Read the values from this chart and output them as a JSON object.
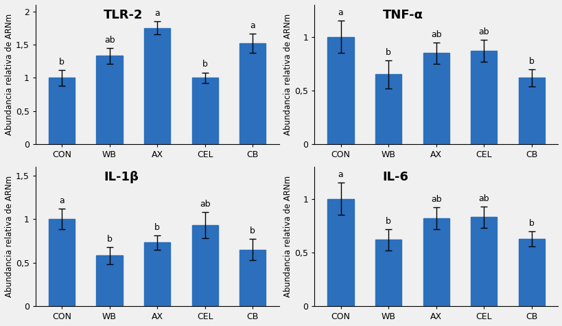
{
  "subplots": [
    {
      "title": "TLR-2",
      "categories": [
        "CON",
        "WB",
        "AX",
        "CEL",
        "CB"
      ],
      "values": [
        1.0,
        1.33,
        1.75,
        1.0,
        1.52
      ],
      "errors": [
        0.12,
        0.12,
        0.1,
        0.08,
        0.14
      ],
      "letters": [
        "b",
        "ab",
        "a",
        "b",
        "a"
      ],
      "ylim": [
        0,
        2.1
      ],
      "yticks": [
        0,
        0.5,
        1.0,
        1.5,
        2.0
      ],
      "ytick_labels": [
        "0",
        "0,5",
        "1",
        "1,5",
        "2"
      ]
    },
    {
      "title": "TNF-α",
      "categories": [
        "CON",
        "WB",
        "AX",
        "CEL",
        "CB"
      ],
      "values": [
        1.0,
        0.65,
        0.85,
        0.87,
        0.62
      ],
      "errors": [
        0.15,
        0.13,
        0.1,
        0.1,
        0.08
      ],
      "letters": [
        "a",
        "b",
        "ab",
        "ab",
        "b"
      ],
      "ylim": [
        0,
        1.3
      ],
      "yticks": [
        0,
        0.5,
        1.0
      ],
      "ytick_labels": [
        "0",
        "0,5",
        "1"
      ]
    },
    {
      "title": "IL-1β",
      "categories": [
        "CON",
        "WB",
        "AX",
        "CEL",
        "CB"
      ],
      "values": [
        1.0,
        0.58,
        0.73,
        0.93,
        0.65
      ],
      "errors": [
        0.12,
        0.1,
        0.08,
        0.15,
        0.12
      ],
      "letters": [
        "a",
        "b",
        "b",
        "ab",
        "b"
      ],
      "ylim": [
        0,
        1.6
      ],
      "yticks": [
        0,
        0.5,
        1.0,
        1.5
      ],
      "ytick_labels": [
        "0",
        "0,5",
        "1",
        "1,5"
      ]
    },
    {
      "title": "IL-6",
      "categories": [
        "CON",
        "WB",
        "AX",
        "CEL",
        "CB"
      ],
      "values": [
        1.0,
        0.62,
        0.82,
        0.83,
        0.63
      ],
      "errors": [
        0.15,
        0.1,
        0.1,
        0.1,
        0.07
      ],
      "letters": [
        "a",
        "b",
        "ab",
        "ab",
        "b"
      ],
      "ylim": [
        0,
        1.3
      ],
      "yticks": [
        0,
        0.5,
        1.0
      ],
      "ytick_labels": [
        "0",
        "0,5",
        "1"
      ]
    }
  ],
  "bar_color": "#2B6FBD",
  "bar_edgecolor": "#2B6FBD",
  "ylabel": "Abundancia relativa de ARNm",
  "background_color": "#f0f0f0",
  "title_fontsize": 13,
  "label_fontsize": 8.5,
  "tick_fontsize": 9,
  "letter_fontsize": 9
}
